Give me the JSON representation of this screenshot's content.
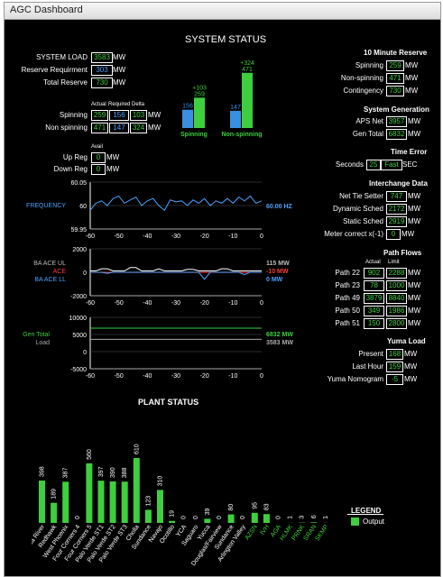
{
  "window": {
    "title": "AGC Dashboard"
  },
  "system_status": {
    "title": "SYSTEM STATUS",
    "system_load": {
      "label": "SYSTEM LOAD",
      "value": "3583",
      "unit": "MW"
    },
    "reserve_requirement": {
      "label": "Reserve Requirment",
      "value": "303",
      "unit": "MW"
    },
    "total_reserve": {
      "label": "Total Reserve",
      "value": "730",
      "unit": "MW"
    },
    "reserve_table": {
      "headers": [
        "Actual",
        "Required",
        "Delta"
      ],
      "rows": [
        {
          "label": "Spinning",
          "actual": "259",
          "required": "156",
          "delta": "103",
          "unit": "MW"
        },
        {
          "label": "Non spinning",
          "actual": "471",
          "required": "147",
          "delta": "324",
          "unit": "MW"
        }
      ]
    },
    "reserve_bars": {
      "spinning": {
        "label": "Spinning",
        "required": 156,
        "actual": 259,
        "delta_label": "+103"
      },
      "non_spinning": {
        "label": "Non-spinning",
        "required": 147,
        "actual": 471,
        "delta_label": "+324"
      },
      "colors": {
        "required": "#3a8fe0",
        "actual": "#3ecf3e"
      }
    },
    "avail_header": "Avail",
    "up_reg": {
      "label": "Up Reg",
      "value": "0",
      "unit": "MW"
    },
    "down_reg": {
      "label": "Down Reg",
      "value": "0",
      "unit": "MW"
    }
  },
  "frequency_chart": {
    "type": "line",
    "label": "FREQUENCY",
    "readout": "60.00 HZ",
    "y_ticks": [
      "60.05",
      "60",
      "59.95"
    ],
    "ylim": [
      59.95,
      60.05
    ],
    "x_ticks": [
      "-60",
      "-50",
      "-40",
      "-30",
      "-20",
      "-10",
      "0"
    ],
    "x": [
      -60,
      -58,
      -56,
      -54,
      -52,
      -50,
      -48,
      -46,
      -44,
      -42,
      -40,
      -38,
      -36,
      -34,
      -32,
      -30,
      -28,
      -26,
      -24,
      -22,
      -20,
      -18,
      -16,
      -14,
      -12,
      -10,
      -8,
      -6,
      -4,
      -2,
      0
    ],
    "values": [
      59.99,
      60.005,
      60.01,
      60.0,
      60.015,
      60.02,
      60.005,
      60.012,
      60.018,
      60.0,
      60.01,
      60.015,
      60.0,
      59.99,
      60.012,
      60.008,
      60.01,
      60.0,
      60.012,
      60.005,
      60.015,
      60.0,
      60.01,
      60.005,
      60.015,
      60.005,
      60.018,
      60.01,
      60.02,
      60.005,
      60.01
    ]
  },
  "ace_chart": {
    "type": "line",
    "labels": {
      "ul": "BA ACE UL",
      "ace": "ACE",
      "ll": "BA ACE LL"
    },
    "readouts": {
      "ul": "115 MW",
      "ace": "-10 MW",
      "ll": "0 MW"
    },
    "y_ticks": [
      "2000",
      "0",
      "-2000"
    ],
    "ylim": [
      -2000,
      2000
    ],
    "x_ticks": [
      "-60",
      "-50",
      "-40",
      "-30",
      "-20",
      "-10",
      "0"
    ],
    "colors": {
      "ul": "#ffffff",
      "ace": "#ff3b3b",
      "ll": "#4aa3ff"
    },
    "ul_values": [
      115,
      115,
      300,
      300,
      115,
      115,
      115,
      400,
      400,
      115,
      115,
      115,
      300,
      115,
      115,
      115,
      115,
      250,
      250,
      115,
      115,
      115,
      115,
      300,
      300,
      115,
      115,
      115,
      115,
      115,
      115
    ],
    "ace_values": [
      -10,
      -10,
      -10,
      -10,
      -10,
      -10,
      -10,
      -10,
      -10,
      -10,
      -10,
      -10,
      -10,
      -10,
      -10,
      -10,
      -10,
      -10,
      -10,
      -10,
      -10,
      -10,
      -10,
      -10,
      -10,
      -10,
      -10,
      -10,
      -10,
      -10,
      -10
    ],
    "ll_values": [
      0,
      0,
      0,
      -100,
      0,
      0,
      0,
      0,
      0,
      0,
      0,
      0,
      0,
      0,
      0,
      0,
      0,
      0,
      0,
      0,
      -600,
      0,
      0,
      0,
      0,
      0,
      0,
      -200,
      0,
      0,
      0
    ]
  },
  "gen_chart": {
    "type": "line",
    "label": "Gen Total Load",
    "readouts": {
      "gen": "6832 MW",
      "load": "3583 MW"
    },
    "y_ticks": [
      "10000",
      "5000",
      "0",
      "-5000"
    ],
    "ylim": [
      -5000,
      10000
    ],
    "x_ticks": [
      "-60",
      "-50",
      "-40",
      "-30",
      "-20",
      "-10",
      "0"
    ],
    "gen_value": 6832,
    "load_value": 3583,
    "colors": {
      "gen": "#3ecf3e",
      "load": "#aaaaaa"
    }
  },
  "right_panel": {
    "ten_minute_reserve": {
      "title": "10 Minute Reserve",
      "rows": [
        {
          "label": "Spinning",
          "value": "259",
          "unit": "MW"
        },
        {
          "label": "Non-spinning",
          "value": "471",
          "unit": "MW"
        },
        {
          "label": "Contingency",
          "value": "730",
          "unit": "MW"
        }
      ]
    },
    "system_generation": {
      "title": "System Generation",
      "rows": [
        {
          "label": "APS Net",
          "value": "3957",
          "unit": "MW"
        },
        {
          "label": "Gen Total",
          "value": "6832",
          "unit": "MW"
        }
      ]
    },
    "time_error": {
      "title": "Time Error",
      "label": "Seconds",
      "value": "25",
      "status": "Fast",
      "unit": "SEC"
    },
    "interchange": {
      "title": "Interchange Data",
      "rows": [
        {
          "label": "Net Tie Setter",
          "value": "747",
          "unit": "MW"
        },
        {
          "label": "Dynamic Sched",
          "value": "2172",
          "unit": "MW"
        },
        {
          "label": "Static Sched",
          "value": "2919",
          "unit": "MW"
        },
        {
          "label": "Meter correct x(-1)",
          "value": "0",
          "unit": "MW"
        }
      ]
    },
    "path_flows": {
      "title": "Path Flows",
      "headers": [
        "Actual",
        "Limit"
      ],
      "rows": [
        {
          "label": "Path 22",
          "actual": "902",
          "limit": "2288",
          "unit": "MW"
        },
        {
          "label": "Path 23",
          "actual": "78",
          "limit": "1000",
          "unit": "MW"
        },
        {
          "label": "Path 49",
          "actual": "3879",
          "limit": "8840",
          "unit": "MW"
        },
        {
          "label": "Path 50",
          "actual": "349",
          "limit": "1986",
          "unit": "MW"
        },
        {
          "label": "Path 51",
          "actual": "150",
          "limit": "2800",
          "unit": "MW"
        }
      ]
    },
    "yuma_load": {
      "title": "Yuma Load",
      "rows": [
        {
          "label": "Present",
          "value": "168",
          "unit": "MW"
        },
        {
          "label": "Last Hour",
          "value": "159",
          "unit": "MW"
        },
        {
          "label": "Yuma Nomogram",
          "value": "-5",
          "unit": "MW"
        }
      ]
    }
  },
  "chart_data": {
    "type": "bar",
    "title": "PLANT STATUS",
    "categories": [
      "Gila River",
      "Redhawk",
      "West Phoenix",
      "Four Corners 4",
      "Four Corners 5",
      "Palo Verde ST1",
      "Palo Verde ST2",
      "Palo Verde ST3",
      "Cholla",
      "Sundance",
      "Navajo",
      "Ocotillo",
      "YCA",
      "Saguaro",
      "Yucca",
      "Douglas/Fairview",
      "Sundance",
      "Arlington Valley",
      "AZSN",
      "IVH",
      "AGA",
      "HLMK",
      "PRNK",
      "SRAN",
      "SKMP"
    ],
    "values": [
      398,
      189,
      387,
      0,
      560,
      397,
      390,
      388,
      610,
      123,
      310,
      19,
      0,
      0,
      39,
      0,
      80,
      0,
      95,
      83,
      0,
      1,
      3,
      6,
      1
    ],
    "label_colors": [
      "#fff",
      "#fff",
      "#fff",
      "#fff",
      "#fff",
      "#fff",
      "#fff",
      "#fff",
      "#fff",
      "#fff",
      "#fff",
      "#fff",
      "#fff",
      "#fff",
      "#fff",
      "#fff",
      "#fff",
      "#fff",
      "#3ecf3e",
      "#3ecf3e",
      "#3ecf3e",
      "#3ecf3e",
      "#3ecf3e",
      "#3ecf3e",
      "#3ecf3e"
    ],
    "bar_color": "#3ecf3e",
    "legend": {
      "title": "LEGEND",
      "entries": [
        "Output"
      ]
    }
  }
}
